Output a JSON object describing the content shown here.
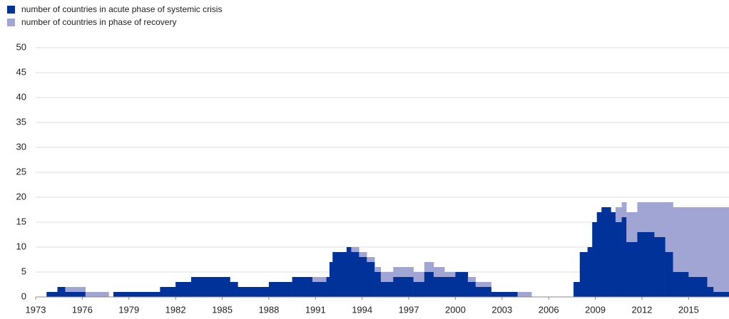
{
  "chart_data": {
    "type": "stacked-area",
    "x": [
      1973.0,
      1973.7,
      1974.4,
      1974.9,
      1976.2,
      1977.7,
      1978.0,
      1981.0,
      1982.0,
      1983.0,
      1985.5,
      1986.0,
      1988.0,
      1989.5,
      1990.8,
      1991.7,
      1991.9,
      1992.1,
      1993.0,
      1993.3,
      1993.8,
      1994.3,
      1994.8,
      1995.2,
      1996.0,
      1997.3,
      1998.0,
      1998.6,
      1999.3,
      2000.0,
      2000.8,
      2001.3,
      2002.3,
      2004.0,
      2004.9,
      2007.6,
      2008.0,
      2008.5,
      2008.8,
      2009.1,
      2009.4,
      2010.0,
      2010.3,
      2010.7,
      2011.0,
      2011.7,
      2012.8,
      2013.5,
      2014.0,
      2015.0,
      2016.2,
      2016.6
    ],
    "series": [
      {
        "name": "number of countries in acute phase of systemic crisis",
        "color": "#003299",
        "values": [
          0,
          1,
          2,
          1,
          0,
          0,
          1,
          2,
          3,
          4,
          3,
          2,
          3,
          4,
          3,
          4,
          7,
          9,
          10,
          9,
          8,
          7,
          5,
          3,
          4,
          3,
          5,
          4,
          4,
          5,
          3,
          2,
          1,
          0,
          0,
          3,
          9,
          10,
          15,
          17,
          18,
          17,
          15,
          16,
          11,
          13,
          12,
          9,
          5,
          4,
          2,
          1
        ]
      },
      {
        "name": "number of countries in phase of recovery",
        "color": "#a0a5d3",
        "values": [
          0,
          0,
          0,
          1,
          1,
          0,
          0,
          0,
          0,
          0,
          0,
          0,
          0,
          0,
          1,
          0,
          0,
          0,
          0,
          1,
          1,
          1,
          1,
          2,
          2,
          2,
          2,
          2,
          1,
          0,
          1,
          1,
          0,
          1,
          0,
          0,
          0,
          0,
          0,
          0,
          0,
          0,
          3,
          3,
          6,
          6,
          7,
          10,
          13,
          14,
          16,
          17
        ]
      }
    ],
    "xlim": [
      1973,
      2017.6
    ],
    "xticks": [
      1973,
      1976,
      1979,
      1982,
      1985,
      1988,
      1991,
      1994,
      1997,
      2000,
      2003,
      2006,
      2009,
      2012,
      2015
    ],
    "ylim": [
      0,
      50
    ],
    "yticks": [
      0,
      5,
      10,
      15,
      20,
      25,
      30,
      35,
      40,
      45,
      50
    ],
    "grid": true
  }
}
